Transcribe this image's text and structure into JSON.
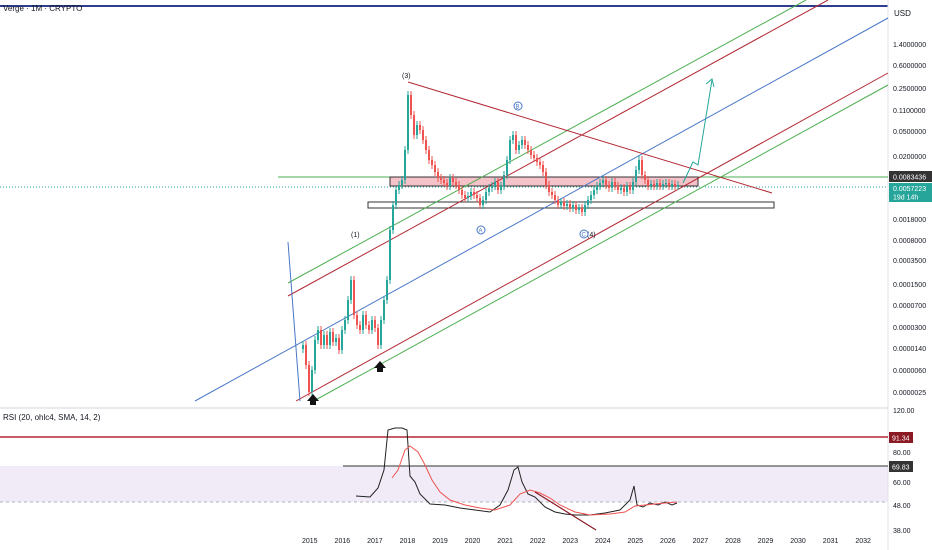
{
  "header": {
    "title": "Verge · 1M · CRYPTO",
    "currency": "USD"
  },
  "chart_data": {
    "type": "candlestick",
    "title": "Verge · 1M · CRYPTO",
    "price_axis": {
      "scale": "log",
      "tick_labels": [
        "1.4000000",
        "0.6000000",
        "0.2500000",
        "0.1100000",
        "0.0500000",
        "0.0200000",
        "0.0083436",
        "0.0057223",
        "0.0018000",
        "0.0008000",
        "0.0003500",
        "0.0001500",
        "0.0000700",
        "0.0000300",
        "0.0000140",
        "0.0000060",
        "0.0000025"
      ]
    },
    "price_labels": {
      "prev_line": "0.0083436",
      "current": "0.0057223",
      "countdown": "19d 14h"
    },
    "x_axis": {
      "tick_labels": [
        "2015",
        "2016",
        "2017",
        "2018",
        "2019",
        "2020",
        "2021",
        "2022",
        "2023",
        "2024",
        "2025",
        "2026",
        "2027",
        "2028",
        "2029",
        "2030",
        "2031",
        "2032"
      ]
    },
    "wave_labels": {
      "w1": "(1)",
      "w3": "(3)",
      "w4": "(4)",
      "wa": "A",
      "wb": "B",
      "wc": "C"
    },
    "rsi": {
      "title": "RSI (20, ohlc4, SMA, 14, 2)",
      "tick_labels": [
        "120.00",
        "80.00",
        "60.00",
        "48.00",
        "38.00"
      ],
      "levels": {
        "upper": "91.34",
        "lower": "69.83"
      }
    },
    "colors": {
      "up": "#26a69a",
      "down": "#ef5350",
      "channel_green": "#4caf50",
      "channel_red": "#b22833",
      "blue_line": "#4a78c8",
      "top_border": "#2f3e8c"
    }
  }
}
